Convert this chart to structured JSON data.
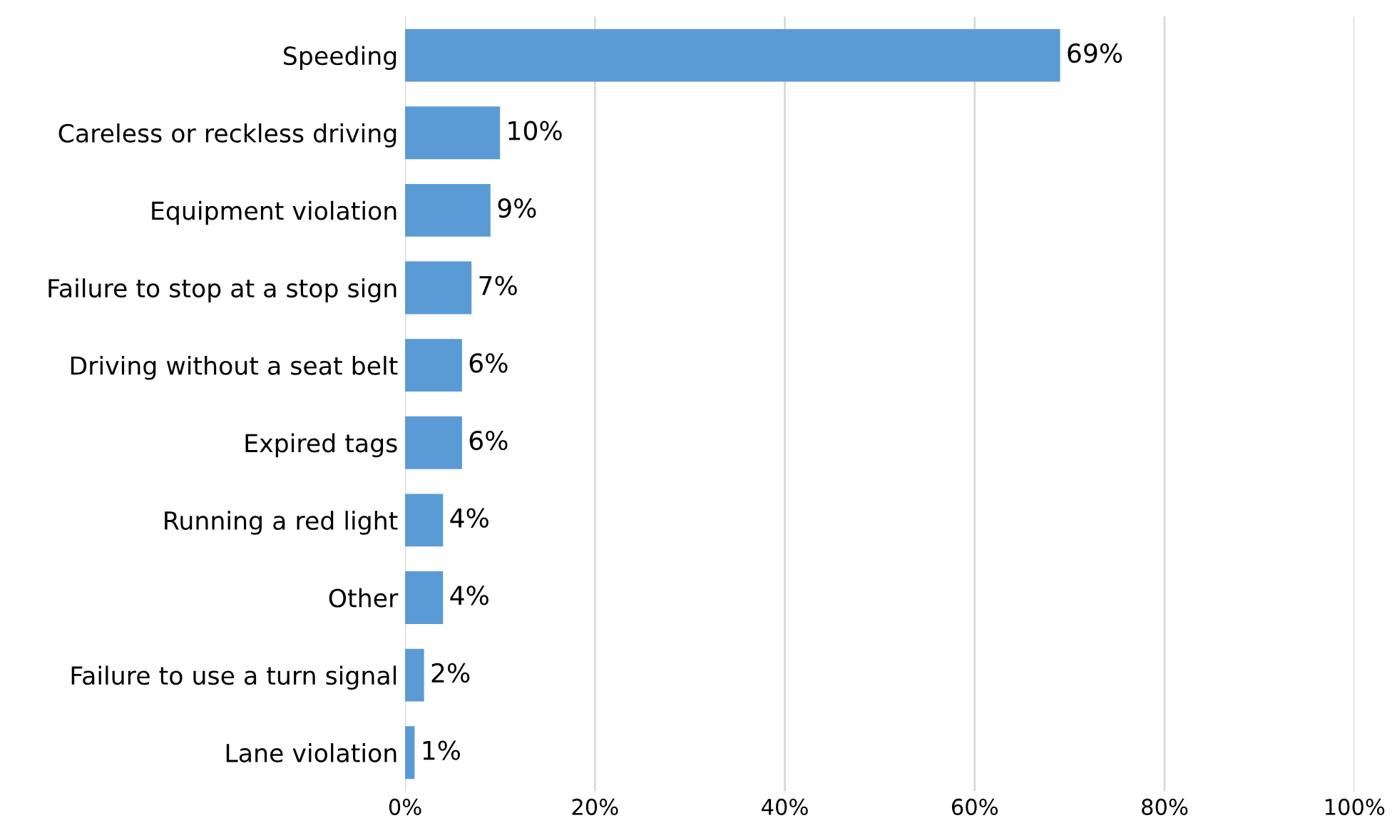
{
  "chart_data": {
    "type": "bar",
    "orientation": "horizontal",
    "categories": [
      "Speeding",
      "Careless or reckless driving",
      "Equipment violation",
      "Failure to stop at a stop sign",
      "Driving without a seat belt",
      "Expired tags",
      "Running a red light",
      "Other",
      "Failure to use a turn signal",
      "Lane violation"
    ],
    "values": [
      69,
      10,
      9,
      7,
      6,
      6,
      4,
      4,
      2,
      1
    ],
    "value_labels": [
      "69%",
      "10%",
      "9%",
      "7%",
      "6%",
      "6%",
      "4%",
      "4%",
      "2%",
      "1%"
    ],
    "color": "#5b9bd5",
    "xlim": [
      0,
      100
    ],
    "xticks": [
      {
        "value": 0,
        "label": "0%"
      },
      {
        "value": 20,
        "label": "20%"
      },
      {
        "value": 40,
        "label": "40%"
      },
      {
        "value": 60,
        "label": "60%"
      },
      {
        "value": 80,
        "label": "80%"
      },
      {
        "value": 100,
        "label": "100%"
      }
    ],
    "grid": "x",
    "legend": false
  }
}
